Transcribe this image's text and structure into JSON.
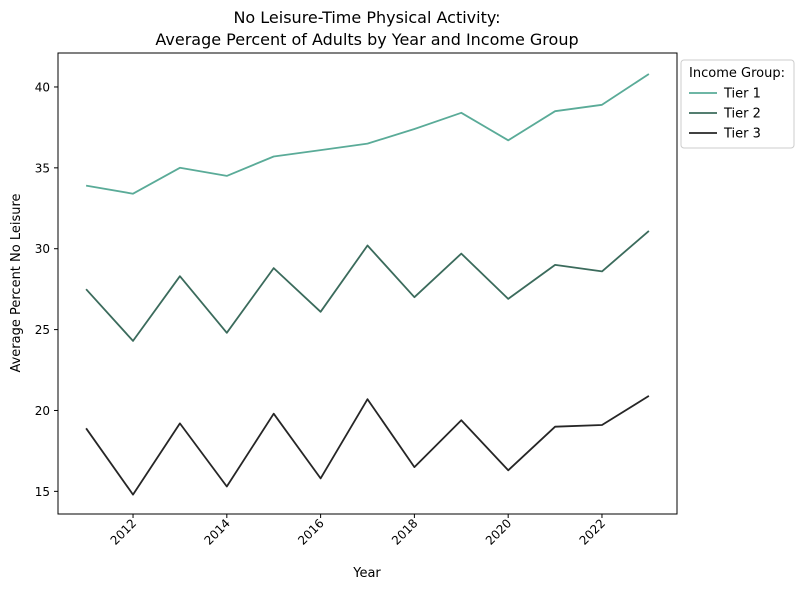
{
  "chart_data": {
    "type": "line",
    "title_line1": "No Leisure-Time Physical Activity:",
    "title_line2": "Average Percent of Adults by Year and Income Group",
    "xlabel": "Year",
    "ylabel": "Average Percent No Leisure",
    "xlim": [
      2010.4,
      2023.6
    ],
    "ylim": [
      13.6,
      42.1
    ],
    "xticks": [
      2012,
      2014,
      2016,
      2018,
      2020,
      2022
    ],
    "yticks": [
      15,
      20,
      25,
      30,
      35,
      40
    ],
    "grid": false,
    "legend": {
      "title": "Income Group:",
      "placement": "upper-right-outside"
    },
    "x": [
      2011,
      2012,
      2013,
      2014,
      2015,
      2016,
      2017,
      2018,
      2019,
      2020,
      2021,
      2022,
      2023
    ],
    "series": [
      {
        "name": "Tier 1",
        "color": "#5aab98",
        "values": [
          33.9,
          33.4,
          35.0,
          34.5,
          35.7,
          36.1,
          36.5,
          37.4,
          38.4,
          36.7,
          38.5,
          38.9,
          40.8
        ]
      },
      {
        "name": "Tier 2",
        "color": "#3b6b5c",
        "values": [
          27.5,
          24.3,
          28.3,
          24.8,
          28.8,
          26.1,
          30.2,
          27.0,
          29.7,
          26.9,
          29.0,
          28.6,
          31.1
        ]
      },
      {
        "name": "Tier 3",
        "color": "#262626",
        "values": [
          18.9,
          14.8,
          19.2,
          15.3,
          19.8,
          15.8,
          20.7,
          16.5,
          19.4,
          16.3,
          19.0,
          19.1,
          20.9
        ]
      }
    ]
  }
}
